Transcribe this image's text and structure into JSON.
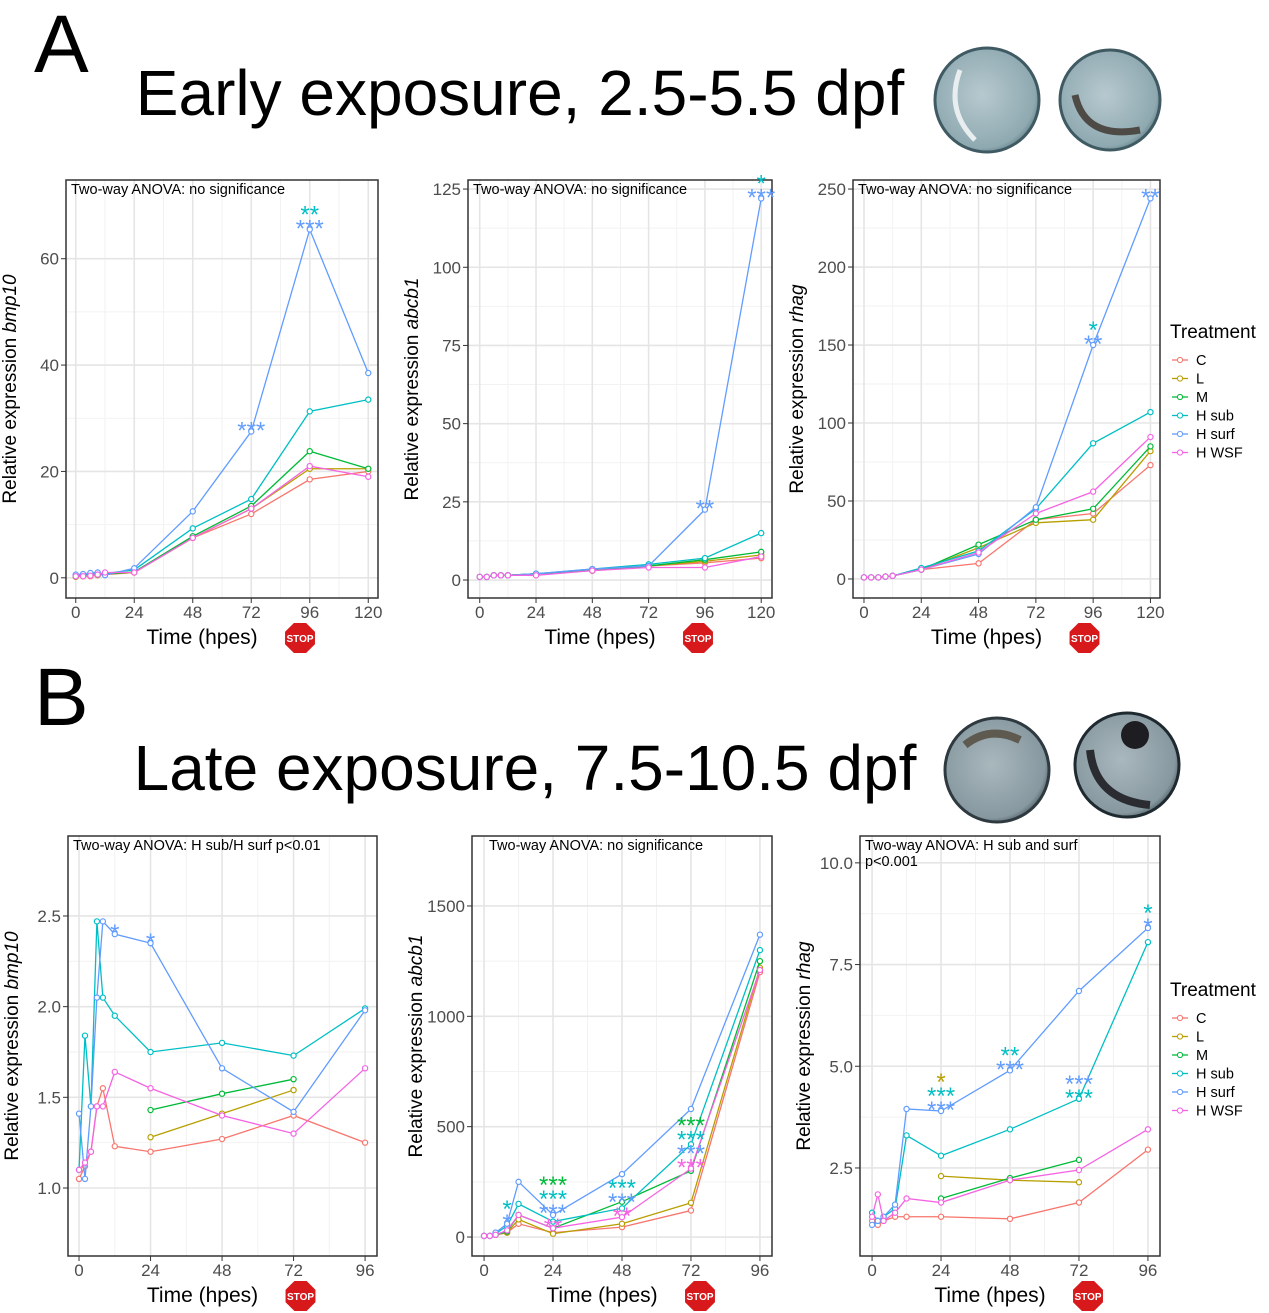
{
  "panels": [
    {
      "label": "A",
      "title": "Early exposure, 2.5-5.5 dpf"
    },
    {
      "label": "B",
      "title": "Late exposure, 7.5-10.5 dpf"
    }
  ],
  "stop_label": "STOP",
  "chart_data": [
    {
      "type": "line",
      "annotation": [
        "Two-way ANOVA: no significance"
      ],
      "ylabel": "Relative expression",
      "ylabel_gene": "bmp10",
      "xlabel": "Time (hpes)",
      "x": [
        0,
        3,
        6,
        9,
        12,
        24,
        48,
        72,
        96,
        120
      ],
      "xlim": [
        -4,
        124
      ],
      "xticks": [
        0,
        24,
        48,
        72,
        96,
        120
      ],
      "ylim": [
        -3.8,
        74.8
      ],
      "yticks": [
        0,
        20,
        40,
        60
      ],
      "grid": true,
      "series": [
        {
          "name": "C",
          "color": "#F8766D",
          "values": [
            0.2,
            0.3,
            0.3,
            0.5,
            0.6,
            1,
            7.5,
            12,
            18.5,
            20
          ]
        },
        {
          "name": "L",
          "color": "#B79F00",
          "values": [
            0.2,
            0.3,
            0.4,
            0.5,
            0.7,
            1,
            7.5,
            13,
            20.5,
            20.5
          ]
        },
        {
          "name": "M",
          "color": "#00BA38",
          "values": [
            0.3,
            0.4,
            0.5,
            0.6,
            0.7,
            1.1,
            7.8,
            13.5,
            23.8,
            20.5
          ]
        },
        {
          "name": "H sub",
          "color": "#00BFC4",
          "values": [
            0.5,
            0.6,
            0.7,
            0.8,
            0.8,
            1.5,
            9.3,
            14.8,
            31.3,
            33.5
          ]
        },
        {
          "name": "H surf",
          "color": "#619CFF",
          "values": [
            0.6,
            0.7,
            0.9,
            1,
            0.5,
            1.8,
            12.5,
            27.5,
            65.5,
            38.5
          ]
        },
        {
          "name": "H WSF",
          "color": "#F564E3",
          "values": [
            0.3,
            0.3,
            0.4,
            0.6,
            1,
            1,
            7.5,
            13,
            21,
            19
          ]
        }
      ],
      "stars": [
        {
          "x": 72,
          "series": 4,
          "text": "***"
        },
        {
          "x": 96,
          "series": 3,
          "text": "**"
        },
        {
          "x": 96,
          "series": 4,
          "text": "***"
        }
      ]
    },
    {
      "type": "line",
      "annotation": [
        "Two-way ANOVA: no significance"
      ],
      "ylabel": "Relative expression",
      "ylabel_gene": "abcb1",
      "xlabel": "Time (hpes)",
      "x": [
        0,
        3,
        6,
        9,
        12,
        24,
        48,
        72,
        96,
        120
      ],
      "xlim": [
        -5,
        124.6
      ],
      "xticks": [
        0,
        24,
        48,
        72,
        96,
        120
      ],
      "ylim": [
        -5.75,
        127.9
      ],
      "yticks": [
        0,
        25,
        50,
        75,
        100,
        125
      ],
      "grid": true,
      "series": [
        {
          "name": "C",
          "color": "#F8766D",
          "values": [
            1,
            1,
            1.5,
            1.5,
            1.5,
            2,
            3,
            4.5,
            5.5,
            7
          ]
        },
        {
          "name": "L",
          "color": "#B79F00",
          "values": [
            1,
            1,
            1.5,
            1.5,
            1.5,
            2,
            3,
            4.5,
            6,
            8
          ]
        },
        {
          "name": "M",
          "color": "#00BA38",
          "values": [
            1,
            1,
            1.5,
            1.5,
            1.5,
            2,
            3,
            4.5,
            6.5,
            9
          ]
        },
        {
          "name": "H sub",
          "color": "#00BFC4",
          "values": [
            1,
            1,
            1.5,
            1.5,
            1.5,
            2,
            3.5,
            5,
            7,
            15
          ]
        },
        {
          "name": "H surf",
          "color": "#619CFF",
          "values": [
            1,
            1,
            1.5,
            1.5,
            1.5,
            2,
            3.5,
            4.5,
            22.5,
            122
          ]
        },
        {
          "name": "H WSF",
          "color": "#F564E3",
          "values": [
            1,
            1,
            1.5,
            1.5,
            1.5,
            1.5,
            3,
            4,
            4,
            7.5
          ]
        }
      ],
      "stars": [
        {
          "x": 96,
          "series": 4,
          "text": "**"
        },
        {
          "x": 120,
          "series": 3,
          "text": "*"
        },
        {
          "x": 120,
          "series": 4,
          "text": "***"
        }
      ]
    },
    {
      "type": "line",
      "annotation": [
        "Two-way ANOVA: no significance"
      ],
      "ylabel": "Relative expression",
      "ylabel_gene": "rhag",
      "xlabel": "Time (hpes)",
      "legend_title": "Treatment",
      "x": [
        0,
        3,
        6,
        9,
        12,
        24,
        48,
        72,
        96,
        120
      ],
      "xlim": [
        -4.6,
        124
      ],
      "xticks": [
        0,
        24,
        48,
        72,
        96,
        120
      ],
      "ylim": [
        -12.2,
        255.8
      ],
      "yticks": [
        0,
        50,
        100,
        150,
        200,
        250
      ],
      "grid": true,
      "series": [
        {
          "name": "C",
          "color": "#F8766D",
          "values": [
            1,
            1,
            1,
            1.5,
            2,
            6,
            10,
            38,
            42,
            73
          ]
        },
        {
          "name": "L",
          "color": "#B79F00",
          "values": [
            1,
            1,
            1,
            1.5,
            2,
            6,
            20,
            36,
            38,
            82
          ]
        },
        {
          "name": "M",
          "color": "#00BA38",
          "values": [
            1,
            1,
            1,
            1.5,
            2,
            6,
            22,
            38,
            45,
            85
          ]
        },
        {
          "name": "H sub",
          "color": "#00BFC4",
          "values": [
            1,
            1,
            1,
            1.5,
            2,
            7,
            18,
            45,
            87,
            107
          ]
        },
        {
          "name": "H surf",
          "color": "#619CFF",
          "values": [
            1,
            1,
            1,
            1.5,
            2,
            6,
            16,
            46,
            150,
            244
          ]
        },
        {
          "name": "H WSF",
          "color": "#F564E3",
          "values": [
            1,
            1,
            1,
            1.5,
            2,
            6,
            17,
            42,
            56,
            91
          ]
        }
      ],
      "stars": [
        {
          "x": 96,
          "series": 3,
          "text": "*"
        },
        {
          "x": 96,
          "series": 4,
          "text": "**"
        },
        {
          "x": 120,
          "series": 4,
          "text": "**"
        }
      ]
    },
    {
      "type": "line",
      "annotation": [
        "Two-way ANOVA: H sub/H surf p<0.01"
      ],
      "ylabel": "Relative expression",
      "ylabel_gene": "bmp10",
      "xlabel": "Time (hpes)",
      "x": [
        0,
        2,
        4,
        6,
        8,
        12,
        24,
        48,
        72,
        96
      ],
      "xlim": [
        -3.7,
        100
      ],
      "xticks": [
        0,
        24,
        48,
        72,
        96
      ],
      "ylim": [
        0.625,
        2.941
      ],
      "yticks": [
        {
          "value": 1,
          "label": "1.0"
        },
        1.5,
        {
          "value": 2,
          "label": "2.0"
        },
        2.5
      ],
      "grid": true,
      "series": [
        {
          "name": "C",
          "color": "#F8766D",
          "values": [
            1.05,
            1.12,
            1.2,
            1.45,
            1.55,
            1.23,
            1.2,
            1.27,
            1.4,
            1.25
          ]
        },
        {
          "name": "L",
          "color": "#B79F00",
          "values": [
            null,
            null,
            null,
            null,
            null,
            null,
            1.28,
            1.41,
            1.54,
            null
          ]
        },
        {
          "name": "M",
          "color": "#00BA38",
          "values": [
            null,
            null,
            null,
            null,
            null,
            null,
            1.43,
            1.52,
            1.6,
            null
          ]
        },
        {
          "name": "H sub",
          "color": "#00BFC4",
          "values": [
            1.1,
            1.84,
            1.45,
            2.47,
            2.05,
            1.95,
            1.75,
            1.8,
            1.73,
            1.99
          ]
        },
        {
          "name": "H surf",
          "color": "#619CFF",
          "values": [
            1.41,
            1.05,
            1.45,
            2.05,
            2.47,
            2.4,
            2.35,
            1.66,
            1.42,
            1.98
          ]
        },
        {
          "name": "H WSF",
          "color": "#F564E3",
          "values": [
            1.1,
            1.14,
            1.2,
            1.45,
            1.45,
            1.64,
            1.55,
            1.4,
            1.3,
            1.66
          ]
        }
      ],
      "stars": [
        {
          "x": 12,
          "series": 4,
          "text": "*"
        },
        {
          "x": 24,
          "series": 4,
          "text": "*"
        }
      ]
    },
    {
      "type": "line",
      "annotation": [
        "Two-way ANOVA: no significance"
      ],
      "ylabel": "Relative expression",
      "ylabel_gene": "abcb1",
      "xlabel": "Time (hpes)",
      "x": [
        0,
        2,
        4,
        8,
        12,
        24,
        48,
        72,
        96
      ],
      "xlim": [
        -4.2,
        100.2
      ],
      "xticks": [
        0,
        24,
        48,
        72,
        96
      ],
      "ylim": [
        -86,
        1817
      ],
      "yticks": [
        0,
        500,
        1000,
        1500
      ],
      "grid": true,
      "series": [
        {
          "name": "C",
          "color": "#F8766D",
          "values": [
            5,
            5,
            10,
            20,
            60,
            20,
            45,
            120,
            1200
          ]
        },
        {
          "name": "L",
          "color": "#B79F00",
          "values": [
            5,
            5,
            10,
            20,
            80,
            15,
            60,
            155,
            1220
          ]
        },
        {
          "name": "M",
          "color": "#00BA38",
          "values": [
            5,
            5,
            10,
            25,
            100,
            40,
            160,
            300,
            1250
          ]
        },
        {
          "name": "H sub",
          "color": "#00BFC4",
          "values": [
            5,
            5,
            15,
            50,
            150,
            70,
            130,
            420,
            1300
          ]
        },
        {
          "name": "H surf",
          "color": "#619CFF",
          "values": [
            5,
            5,
            20,
            60,
            250,
            100,
            285,
            580,
            1370
          ]
        },
        {
          "name": "H WSF",
          "color": "#F564E3",
          "values": [
            5,
            5,
            10,
            30,
            100,
            40,
            90,
            310,
            1210
          ]
        }
      ],
      "stars": [
        {
          "x": 8,
          "series": 3,
          "text": "*"
        },
        {
          "x": 8,
          "series": 4,
          "text": "*"
        },
        {
          "x": 24,
          "series": 2,
          "text": "***"
        },
        {
          "x": 24,
          "series": 3,
          "text": "***"
        },
        {
          "x": 24,
          "series": 4,
          "text": "***"
        },
        {
          "x": 24,
          "series": 5,
          "text": "**"
        },
        {
          "x": 48,
          "series": 3,
          "text": "***"
        },
        {
          "x": 48,
          "series": 4,
          "text": "***"
        },
        {
          "x": 48,
          "series": 5,
          "text": "**"
        },
        {
          "x": 72,
          "series": 2,
          "text": "***"
        },
        {
          "x": 72,
          "series": 3,
          "text": "***"
        },
        {
          "x": 72,
          "series": 4,
          "text": "***"
        },
        {
          "x": 72,
          "series": 5,
          "text": "***"
        }
      ]
    },
    {
      "type": "line",
      "annotation": [
        "Two-way ANOVA: H sub and surf",
        "p<0.001"
      ],
      "ylabel": "Relative expression",
      "ylabel_gene": "rhag",
      "xlabel": "Time (hpes)",
      "legend_title": "Treatment",
      "x": [
        0,
        2,
        4,
        8,
        12,
        24,
        48,
        72,
        96
      ],
      "xlim": [
        -4.2,
        100.2
      ],
      "xticks": [
        0,
        24,
        48,
        72,
        96
      ],
      "ylim": [
        0.336,
        10.66
      ],
      "yticks": [
        2.5,
        {
          "value": 5,
          "label": "5.0"
        },
        7.5,
        {
          "value": 10,
          "label": "10.0"
        }
      ],
      "grid": true,
      "series": [
        {
          "name": "C",
          "color": "#F8766D",
          "values": [
            1.2,
            1.1,
            1.2,
            1.3,
            1.3,
            1.3,
            1.25,
            1.65,
            2.95
          ]
        },
        {
          "name": "L",
          "color": "#B79F00",
          "values": [
            null,
            null,
            null,
            null,
            null,
            2.3,
            2.2,
            2.15,
            null
          ]
        },
        {
          "name": "M",
          "color": "#00BA38",
          "values": [
            null,
            null,
            null,
            null,
            null,
            1.75,
            2.25,
            2.7,
            null
          ]
        },
        {
          "name": "H sub",
          "color": "#00BFC4",
          "values": [
            1.4,
            1.2,
            1.3,
            1.5,
            3.3,
            2.8,
            3.45,
            4.2,
            8.05
          ]
        },
        {
          "name": "H surf",
          "color": "#619CFF",
          "values": [
            1.1,
            1.2,
            1.3,
            1.6,
            3.95,
            3.9,
            4.9,
            6.85,
            8.4
          ]
        },
        {
          "name": "H WSF",
          "color": "#F564E3",
          "values": [
            1.3,
            1.85,
            1.2,
            1.4,
            1.75,
            1.65,
            2.2,
            2.45,
            3.45
          ]
        }
      ],
      "stars": [
        {
          "x": 24,
          "series": 1,
          "text": "*"
        },
        {
          "x": 24,
          "series": 3,
          "text": "***"
        },
        {
          "x": 24,
          "series": 4,
          "text": "***"
        },
        {
          "x": 48,
          "series": 3,
          "text": "**"
        },
        {
          "x": 48,
          "series": 4,
          "text": "***"
        },
        {
          "x": 72,
          "series": 4,
          "text": "***"
        },
        {
          "x": 72,
          "series": 3,
          "text": "***"
        },
        {
          "x": 96,
          "series": 3,
          "text": "*"
        },
        {
          "x": 96,
          "series": 4,
          "text": "*"
        }
      ]
    }
  ]
}
